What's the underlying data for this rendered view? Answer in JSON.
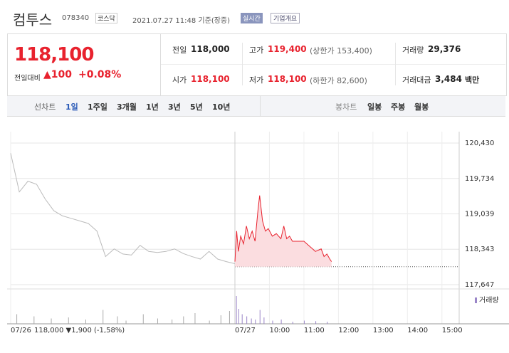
{
  "header": {
    "name": "컴투스",
    "code": "078340",
    "market": "코스닥",
    "time": "2021.07.27 11:48 기준(장중)",
    "realtime": "실시간",
    "overview": "기업개요"
  },
  "price": {
    "now": "118,100",
    "diff_label": "전일대비",
    "diff": "▲100",
    "rate": "+0.08%"
  },
  "quote": {
    "rows": [
      [
        {
          "label": "전일",
          "value": "118,000"
        },
        {
          "label": "고가",
          "value": "119,400",
          "extra": "(상한가 153,400)"
        },
        {
          "label": "거래량",
          "value": "29,376"
        }
      ],
      [
        {
          "label": "시가",
          "value": "118,100"
        },
        {
          "label": "저가",
          "value": "118,100",
          "extra": "(하한가 82,600)"
        },
        {
          "label": "거래대금",
          "value": "3,484",
          "unit": "백만"
        }
      ]
    ]
  },
  "tabs": {
    "line_label": "선차트",
    "line": [
      "1일",
      "1주일",
      "3개월",
      "1년",
      "3년",
      "5년",
      "10년"
    ],
    "candle_label": "봉차트",
    "candle": [
      "일봉",
      "주봉",
      "월봉"
    ]
  },
  "chart_data": {
    "type": "line",
    "xlim": [
      0,
      780
    ],
    "xticks": [
      {
        "value": 0,
        "label": "07/26"
      },
      {
        "value": 390,
        "label": "07/27"
      },
      {
        "value": 450,
        "label": "10:00"
      },
      {
        "value": 510,
        "label": "11:00"
      },
      {
        "value": 570,
        "label": "12:00"
      },
      {
        "value": 630,
        "label": "13:00"
      },
      {
        "value": 690,
        "label": "14:00"
      },
      {
        "value": 750,
        "label": "15:00"
      }
    ],
    "ylim": [
      117647,
      120430
    ],
    "yticks": [
      {
        "value": 117647,
        "label": "117,647"
      },
      {
        "value": 118343,
        "label": "118,343"
      },
      {
        "value": 119039,
        "label": "119,039"
      },
      {
        "value": 119734,
        "label": "119,734"
      },
      {
        "value": 120430,
        "label": "120,430"
      }
    ],
    "baseline": 118000,
    "prev_summary": "118,000 ▼1,900 (-1,58%)",
    "series": [
      {
        "color": "#bbbbbb",
        "x": [
          0,
          15,
          30,
          45,
          60,
          75,
          90,
          105,
          120,
          135,
          150,
          165,
          180,
          195,
          210,
          225,
          240,
          255,
          270,
          285,
          300,
          315,
          330,
          345,
          360,
          375,
          390
        ],
        "values": [
          120230,
          119470,
          119680,
          119620,
          119330,
          119100,
          119000,
          118950,
          118900,
          118850,
          118700,
          118200,
          118350,
          118250,
          118230,
          118420,
          118300,
          118280,
          118300,
          118350,
          118260,
          118200,
          118150,
          118300,
          118150,
          118100,
          118060
        ]
      },
      {
        "color": "#e8222e",
        "x": [
          390,
          393,
          396,
          400,
          405,
          410,
          415,
          420,
          425,
          430,
          433,
          438,
          443,
          448,
          455,
          462,
          470,
          475,
          480,
          485,
          490,
          500,
          510,
          520,
          530,
          540,
          545,
          550,
          555,
          558
        ],
        "values": [
          118100,
          118700,
          118300,
          118600,
          118450,
          118800,
          118550,
          118700,
          118500,
          119100,
          119400,
          118900,
          118700,
          118750,
          118600,
          118650,
          118550,
          118800,
          118550,
          118600,
          118500,
          118500,
          118500,
          118400,
          118300,
          118350,
          118200,
          118250,
          118150,
          118100
        ]
      }
    ],
    "volume": {
      "name": "거래량",
      "color": "#9a86c8",
      "ylim": [
        0,
        3000
      ],
      "x": [
        10,
        40,
        70,
        100,
        130,
        160,
        185,
        200,
        230,
        255,
        280,
        300,
        320,
        345,
        365,
        380,
        392,
        396,
        402,
        410,
        418,
        425,
        433,
        440,
        455,
        470,
        490,
        510,
        530,
        550
      ],
      "values": [
        900,
        700,
        500,
        600,
        400,
        1300,
        700,
        300,
        900,
        500,
        400,
        700,
        1000,
        300,
        800,
        1200,
        2600,
        1400,
        900,
        700,
        500,
        400,
        1300,
        600,
        300,
        400,
        200,
        300,
        250,
        200
      ]
    }
  }
}
